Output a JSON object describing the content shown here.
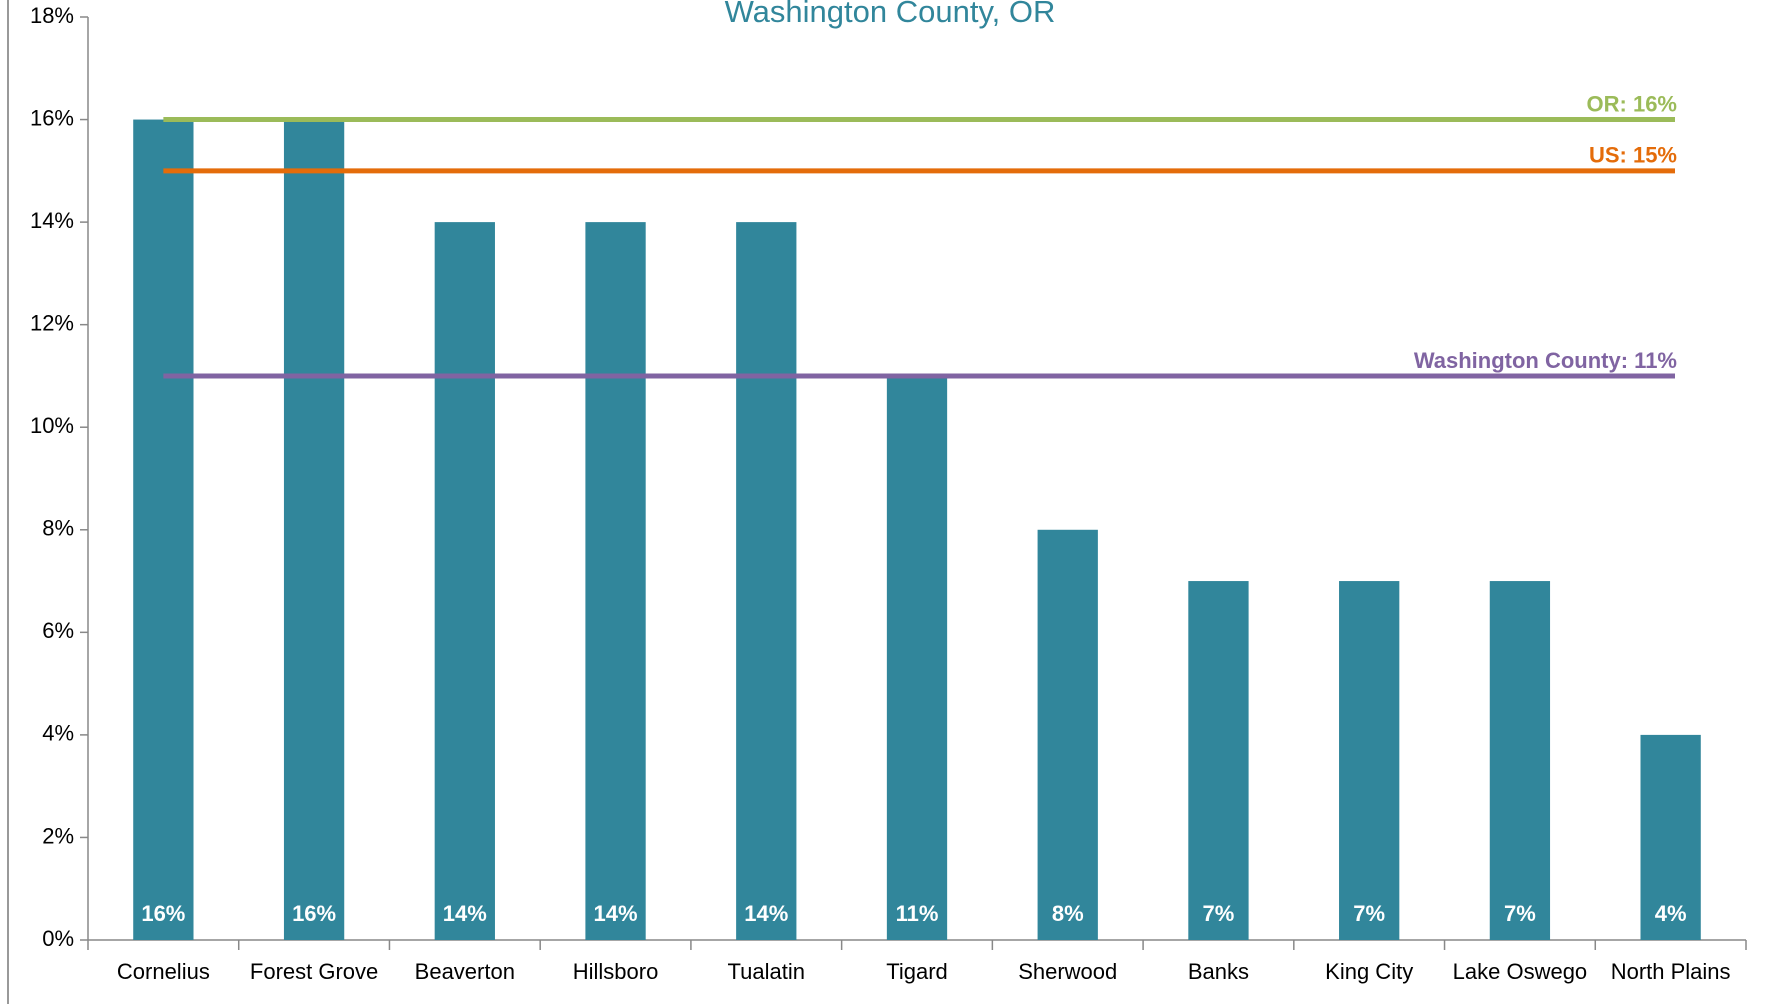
{
  "chart_data": {
    "type": "bar",
    "title": "Washington County, OR",
    "categories": [
      "Cornelius",
      "Forest Grove",
      "Beaverton",
      "Hillsboro",
      "Tualatin",
      "Tigard",
      "Sherwood",
      "Banks",
      "King City",
      "Lake Oswego",
      "North Plains"
    ],
    "values": [
      16,
      16,
      14,
      14,
      14,
      11,
      8,
      7,
      7,
      7,
      4
    ],
    "value_labels": [
      "16%",
      "16%",
      "14%",
      "14%",
      "14%",
      "11%",
      "8%",
      "7%",
      "7%",
      "7%",
      "4%"
    ],
    "color": "#31869b",
    "ylim": [
      0,
      18
    ],
    "yticks": [
      {
        "value": 0,
        "label": "0%"
      },
      {
        "value": 2,
        "label": "2%"
      },
      {
        "value": 4,
        "label": "4%"
      },
      {
        "value": 6,
        "label": "6%"
      },
      {
        "value": 8,
        "label": "8%"
      },
      {
        "value": 10,
        "label": "10%"
      },
      {
        "value": 12,
        "label": "12%"
      },
      {
        "value": 14,
        "label": "14%"
      },
      {
        "value": 16,
        "label": "16%"
      },
      {
        "value": 18,
        "label": "18%"
      }
    ],
    "reference_lines": [
      {
        "label": "OR: 16%",
        "value": 16,
        "color": "#9bbb59"
      },
      {
        "label": "US: 15%",
        "value": 15,
        "color": "#e46c0a"
      },
      {
        "label": "Washington County: 11%",
        "value": 11,
        "color": "#8064a2"
      }
    ]
  }
}
